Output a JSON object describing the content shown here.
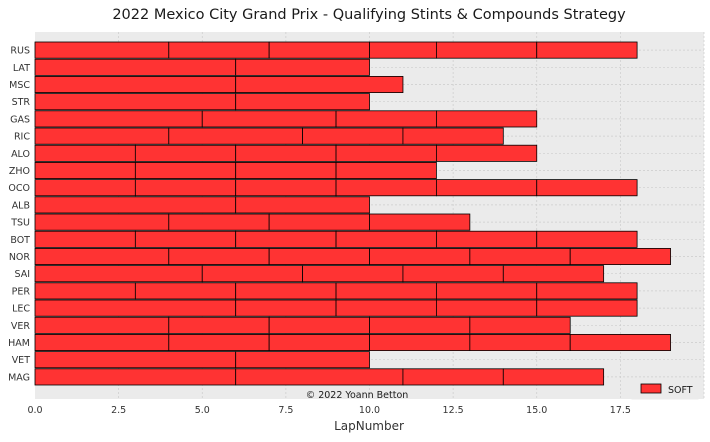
{
  "chart_data": {
    "type": "bar",
    "orientation": "horizontal-stacked",
    "title": "2022 Mexico City Grand Prix - Qualifying Stints & Compounds Strategy",
    "xlabel": "LapNumber",
    "ylabel": "",
    "xlim": [
      0,
      20
    ],
    "xticks": [
      "0.0",
      "2.5",
      "5.0",
      "7.5",
      "10.0",
      "12.5",
      "15.0",
      "17.5"
    ],
    "grid": true,
    "legend_position": "bottom-right",
    "legend": [
      {
        "name": "SOFT",
        "color": "#ff3333"
      }
    ],
    "watermark": "© 2022 Yoann Betton",
    "drivers": [
      "RUS",
      "LAT",
      "MSC",
      "STR",
      "GAS",
      "RIC",
      "ALO",
      "ZHO",
      "OCO",
      "ALB",
      "TSU",
      "BOT",
      "NOR",
      "SAI",
      "PER",
      "LEC",
      "VER",
      "HAM",
      "VET",
      "MAG"
    ],
    "stints": [
      {
        "driver": "RUS",
        "boundaries": [
          0,
          4,
          7,
          10,
          12,
          15,
          18
        ]
      },
      {
        "driver": "LAT",
        "boundaries": [
          0,
          6,
          10
        ]
      },
      {
        "driver": "MSC",
        "boundaries": [
          0,
          6,
          11
        ]
      },
      {
        "driver": "STR",
        "boundaries": [
          0,
          6,
          10
        ]
      },
      {
        "driver": "GAS",
        "boundaries": [
          0,
          5,
          9,
          12,
          15
        ]
      },
      {
        "driver": "RIC",
        "boundaries": [
          0,
          4,
          8,
          11,
          14
        ]
      },
      {
        "driver": "ALO",
        "boundaries": [
          0,
          3,
          6,
          9,
          12,
          15
        ]
      },
      {
        "driver": "ZHO",
        "boundaries": [
          0,
          3,
          6,
          9,
          12
        ]
      },
      {
        "driver": "OCO",
        "boundaries": [
          0,
          3,
          6,
          9,
          12,
          15,
          18
        ]
      },
      {
        "driver": "ALB",
        "boundaries": [
          0,
          6,
          10
        ]
      },
      {
        "driver": "TSU",
        "boundaries": [
          0,
          4,
          7,
          10,
          13
        ]
      },
      {
        "driver": "BOT",
        "boundaries": [
          0,
          3,
          6,
          9,
          12,
          15,
          18
        ]
      },
      {
        "driver": "NOR",
        "boundaries": [
          0,
          4,
          7,
          10,
          13,
          16,
          19
        ]
      },
      {
        "driver": "SAI",
        "boundaries": [
          0,
          5,
          8,
          11,
          14,
          17
        ]
      },
      {
        "driver": "PER",
        "boundaries": [
          0,
          3,
          6,
          9,
          12,
          15,
          18
        ]
      },
      {
        "driver": "LEC",
        "boundaries": [
          0,
          6,
          9,
          12,
          15,
          18
        ]
      },
      {
        "driver": "VER",
        "boundaries": [
          0,
          4,
          7,
          10,
          13,
          16
        ]
      },
      {
        "driver": "HAM",
        "boundaries": [
          0,
          4,
          7,
          10,
          13,
          16,
          19
        ]
      },
      {
        "driver": "VET",
        "boundaries": [
          0,
          6,
          10
        ]
      },
      {
        "driver": "MAG",
        "boundaries": [
          0,
          6,
          11,
          14,
          17
        ]
      }
    ],
    "colors": {
      "bar": "#ff3333",
      "edge": "#000000",
      "plot_bg": "#ebebeb",
      "grid": "#cccccc",
      "text": "#333333"
    }
  }
}
